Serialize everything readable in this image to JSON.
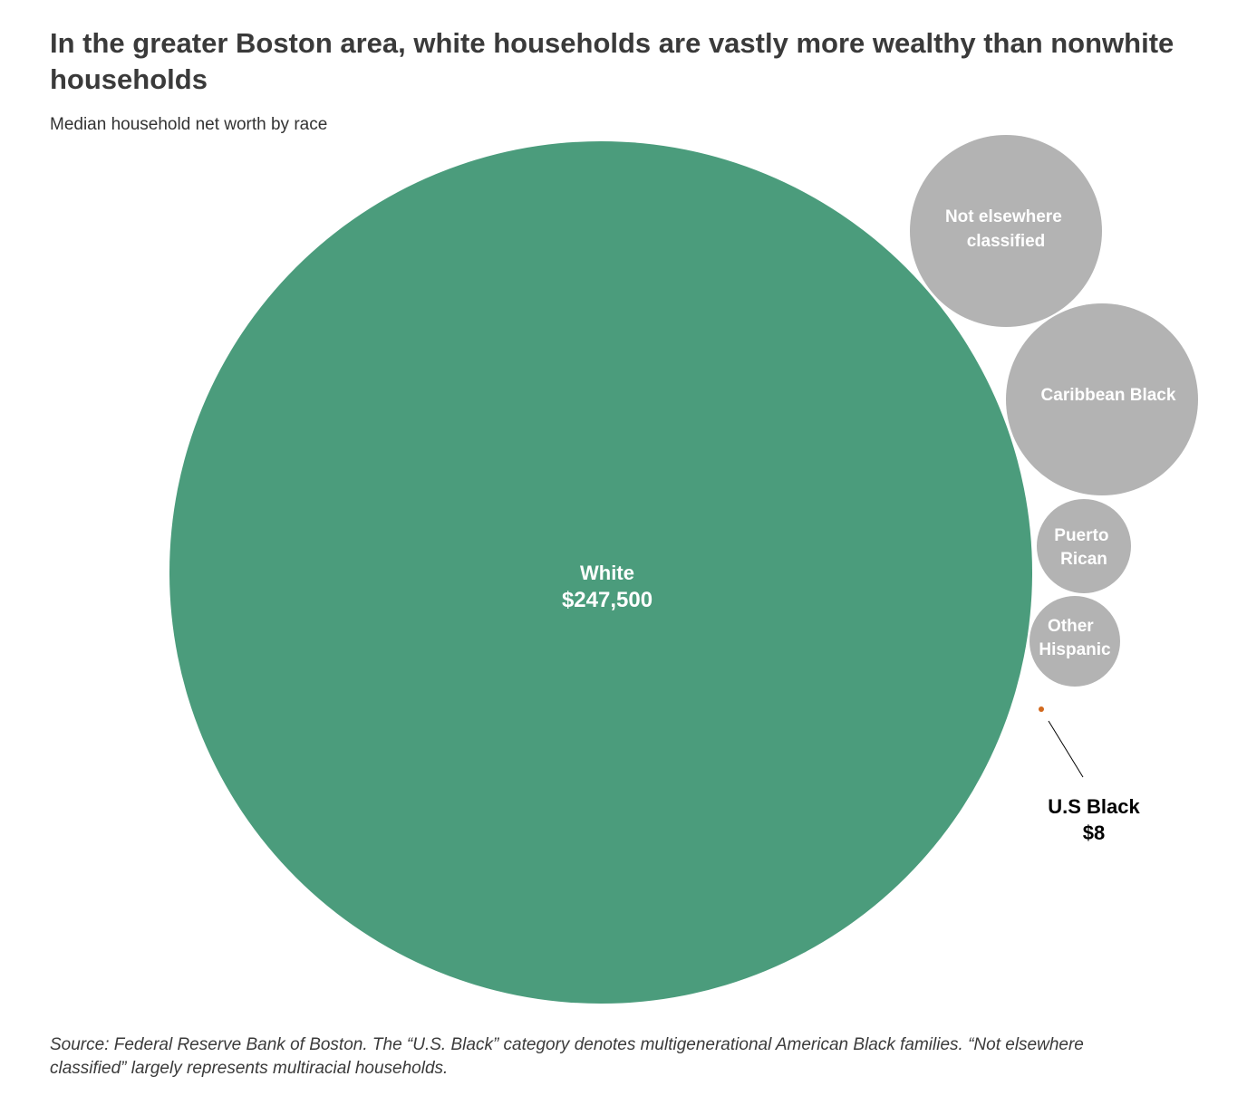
{
  "chart_data": {
    "type": "bubble",
    "title": "In the greater Boston area, white households are vastly more wealthy than nonwhite households",
    "subtitle": "Median household net worth by race",
    "series": [
      {
        "name": "White",
        "value": 247500,
        "value_label": "$247,500",
        "color": "#4b9c7c"
      },
      {
        "name": "Not elsewhere classified",
        "label_lines": [
          "Not elsewhere",
          "classified"
        ],
        "color": "#b3b3b3"
      },
      {
        "name": "Caribbean Black",
        "label_lines": [
          "Caribbean Black"
        ],
        "color": "#b3b3b3"
      },
      {
        "name": "Puerto Rican",
        "label_lines": [
          "Puerto",
          "Rican"
        ],
        "color": "#b3b3b3"
      },
      {
        "name": "Other Hispanic",
        "label_lines": [
          "Other",
          "Hispanic"
        ],
        "color": "#b3b3b3"
      },
      {
        "name": "U.S Black",
        "value": 8,
        "value_label": "$8",
        "color": "#d2691e"
      }
    ],
    "source": "Source: Federal Reserve Bank of Boston. The “U.S. Black”  category denotes multigenerational American Black families. “Not elsewhere classified” largely represents multiracial households."
  }
}
